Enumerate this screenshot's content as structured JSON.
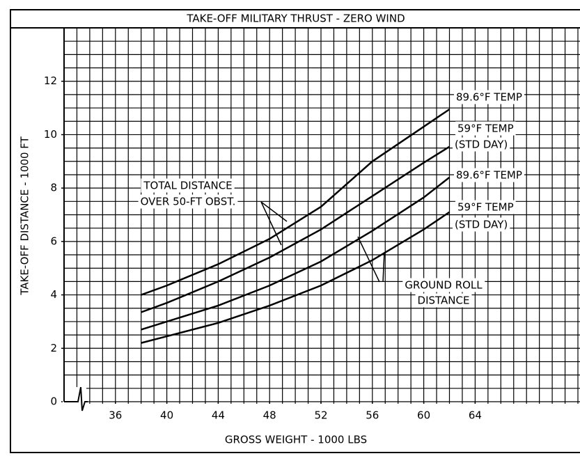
{
  "chart_data": {
    "type": "line",
    "title": "TAKE-OFF MILITARY THRUST - ZERO WIND",
    "xlabel": "GROSS WEIGHT - 1000 LBS",
    "ylabel": "TAKE-OFF DISTANCE - 1000 FT",
    "x": [
      38,
      40,
      44,
      48,
      52,
      56,
      60,
      62
    ],
    "series": [
      {
        "name": "89.6°F TEMP",
        "color": "#000000",
        "values": [
          4.0,
          4.35,
          5.15,
          6.1,
          7.3,
          9.0,
          10.3,
          10.95
        ]
      },
      {
        "name": "59°F TEMP",
        "color": "#000000",
        "values": [
          3.35,
          3.7,
          4.5,
          5.4,
          6.45,
          7.7,
          8.95,
          9.55
        ]
      },
      {
        "name": "89.6°F TEMP",
        "color": "#000000",
        "values": [
          2.7,
          3.0,
          3.6,
          4.35,
          5.25,
          6.4,
          7.65,
          8.4
        ]
      },
      {
        "name": "59°F TEMP",
        "color": "#000000",
        "values": [
          2.2,
          2.45,
          2.95,
          3.6,
          4.35,
          5.3,
          6.45,
          7.1
        ]
      }
    ],
    "annotations": [
      "(STD DAY)",
      "(STD DAY)",
      "TOTAL DISTANCE",
      "OVER 50-FT OBST.",
      "GROUND ROLL",
      "DISTANCE"
    ],
    "xlim": [
      32,
      72
    ],
    "xticks": [
      36,
      40,
      44,
      48,
      52,
      56,
      60,
      64
    ],
    "ylim": [
      0,
      14
    ],
    "yticks": [
      0,
      2,
      4,
      6,
      8,
      10,
      12
    ],
    "grid": true
  }
}
